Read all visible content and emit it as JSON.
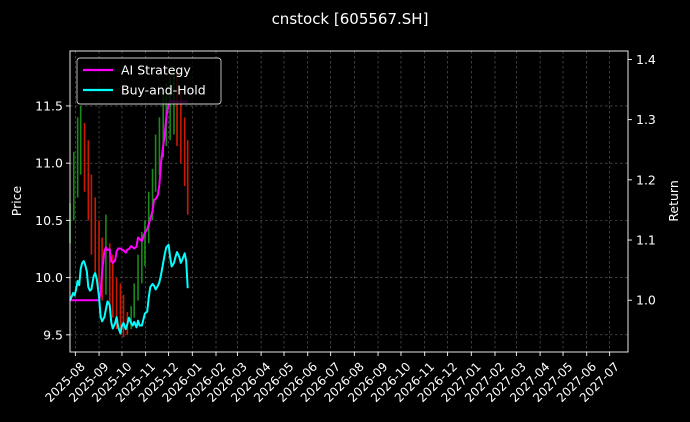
{
  "chart_data": {
    "type": "line",
    "title": "cnstock [605567.SH]",
    "xlabel": "",
    "ylabel": "Price",
    "y2label": "Return",
    "xlim": [
      "2025-07-25",
      "2027-07-25"
    ],
    "ylim": [
      9.35,
      11.98
    ],
    "y2lim": [
      0.914,
      1.414
    ],
    "grid": true,
    "legend_position": "upper-left",
    "x_ticks": [
      "2025-08-01",
      "2025-09-01",
      "2025-10-01",
      "2025-11-01",
      "2025-12-01",
      "2026-01-01",
      "2026-02-01",
      "2026-03-01",
      "2026-04-01",
      "2026-05-01",
      "2026-06-01",
      "2026-07-01",
      "2026-08-01",
      "2026-09-01",
      "2026-10-01",
      "2026-11-01",
      "2026-12-01",
      "2027-01-01",
      "2027-02-01",
      "2027-03-01",
      "2027-04-01",
      "2027-05-01",
      "2027-06-01",
      "2027-07-01"
    ],
    "x_tick_labels": [
      "2025-08",
      "2025-09",
      "2025-10",
      "2025-11",
      "2025-12",
      "2026-01",
      "2026-02",
      "2026-03",
      "2026-04",
      "2026-05",
      "2026-06",
      "2026-07",
      "2026-08",
      "2026-09",
      "2026-10",
      "2026-11",
      "2026-12",
      "2027-01",
      "2027-02",
      "2027-03",
      "2027-04",
      "2027-05",
      "2027-06",
      "2027-07"
    ],
    "y_ticks": [
      9.5,
      10.0,
      10.5,
      11.0,
      11.5
    ],
    "y_tick_labels": [
      "9.5",
      "10.0",
      "10.5",
      "11.0",
      "11.5"
    ],
    "y2_ticks": [
      1.0,
      1.1,
      1.2,
      1.3,
      1.4
    ],
    "y2_tick_labels": [
      "1.0",
      "1.1",
      "1.2",
      "1.3",
      "1.4"
    ],
    "candles_up_color": "#1a8a1a",
    "candles_down_color": "#cc1a00",
    "price_range": {
      "x": [
        "2025-07-25",
        "2025-07-30",
        "2025-08-04",
        "2025-08-08",
        "2025-08-13",
        "2025-08-18",
        "2025-08-22",
        "2025-08-27",
        "2025-09-01",
        "2025-09-05",
        "2025-09-10",
        "2025-09-15",
        "2025-09-19",
        "2025-09-24",
        "2025-09-29",
        "2025-10-03",
        "2025-10-08",
        "2025-10-13",
        "2025-10-17",
        "2025-10-22",
        "2025-10-27",
        "2025-10-31",
        "2025-11-05",
        "2025-11-10",
        "2025-11-14",
        "2025-11-19",
        "2025-11-24",
        "2025-11-28",
        "2025-12-03",
        "2025-12-08",
        "2025-12-12",
        "2025-12-17",
        "2025-12-22",
        "2025-12-26"
      ],
      "high": [
        10.65,
        11.1,
        11.4,
        11.5,
        11.35,
        11.2,
        10.9,
        10.7,
        10.5,
        10.35,
        10.55,
        10.3,
        10.2,
        10.0,
        9.95,
        9.85,
        9.7,
        9.75,
        9.95,
        10.2,
        10.4,
        10.5,
        10.75,
        10.95,
        11.25,
        11.4,
        11.6,
        11.7,
        11.75,
        11.85,
        11.8,
        11.65,
        11.4,
        11.2
      ],
      "low": [
        10.3,
        10.5,
        10.7,
        10.9,
        10.75,
        10.5,
        10.2,
        10.05,
        9.9,
        9.8,
        9.85,
        9.75,
        9.65,
        9.55,
        9.5,
        9.48,
        9.5,
        9.55,
        9.65,
        9.8,
        9.95,
        10.1,
        10.3,
        10.5,
        10.75,
        10.9,
        11.05,
        11.15,
        11.2,
        11.25,
        11.15,
        11.0,
        10.8,
        10.55
      ]
    },
    "series": [
      {
        "name": "AI Strategy",
        "color": "#ff00ff",
        "x": [
          "2025-07-25",
          "2025-07-30",
          "2025-08-04",
          "2025-08-08",
          "2025-08-13",
          "2025-08-18",
          "2025-08-22",
          "2025-08-27",
          "2025-09-01",
          "2025-09-03",
          "2025-09-05",
          "2025-09-08",
          "2025-09-10",
          "2025-09-12",
          "2025-09-15",
          "2025-09-17",
          "2025-09-19",
          "2025-09-22",
          "2025-09-24",
          "2025-09-26",
          "2025-09-29",
          "2025-10-01",
          "2025-10-03",
          "2025-10-06",
          "2025-10-08",
          "2025-10-10",
          "2025-10-13",
          "2025-10-15",
          "2025-10-17",
          "2025-10-20",
          "2025-10-22",
          "2025-10-24",
          "2025-10-27",
          "2025-10-29",
          "2025-10-31",
          "2025-11-03",
          "2025-11-05",
          "2025-11-07",
          "2025-11-10",
          "2025-11-12",
          "2025-11-14",
          "2025-11-17",
          "2025-11-19",
          "2025-11-21",
          "2025-11-24",
          "2025-11-26",
          "2025-11-28",
          "2025-12-01",
          "2025-12-03",
          "2025-12-05",
          "2025-12-08",
          "2025-12-10",
          "2025-12-12",
          "2025-12-15",
          "2025-12-17",
          "2025-12-19",
          "2025-12-22",
          "2025-12-24",
          "2025-12-26"
        ],
        "values": [
          1.0,
          1.0,
          1.0,
          1.0,
          1.0,
          1.0,
          1.0,
          1.0,
          1.0,
          1.012,
          1.048,
          1.082,
          1.088,
          1.083,
          1.085,
          1.065,
          1.062,
          1.066,
          1.081,
          1.086,
          1.086,
          1.084,
          1.083,
          1.079,
          1.084,
          1.085,
          1.09,
          1.088,
          1.086,
          1.089,
          1.104,
          1.102,
          1.098,
          1.106,
          1.112,
          1.118,
          1.126,
          1.135,
          1.149,
          1.167,
          1.168,
          1.175,
          1.192,
          1.228,
          1.258,
          1.275,
          1.305,
          1.325,
          1.33,
          1.331,
          1.33,
          1.33,
          1.33,
          1.33,
          1.33,
          1.33,
          1.33,
          1.33,
          1.33
        ]
      },
      {
        "name": "Buy-and-Hold",
        "color": "#00ffff",
        "x": [
          "2025-07-25",
          "2025-07-27",
          "2025-07-29",
          "2025-07-31",
          "2025-08-02",
          "2025-08-04",
          "2025-08-06",
          "2025-08-08",
          "2025-08-10",
          "2025-08-12",
          "2025-08-14",
          "2025-08-16",
          "2025-08-18",
          "2025-08-20",
          "2025-08-22",
          "2025-08-25",
          "2025-08-27",
          "2025-08-29",
          "2025-09-01",
          "2025-09-03",
          "2025-09-05",
          "2025-09-08",
          "2025-09-10",
          "2025-09-12",
          "2025-09-15",
          "2025-09-17",
          "2025-09-19",
          "2025-09-22",
          "2025-09-24",
          "2025-09-26",
          "2025-09-29",
          "2025-10-01",
          "2025-10-03",
          "2025-10-06",
          "2025-10-08",
          "2025-10-10",
          "2025-10-13",
          "2025-10-15",
          "2025-10-17",
          "2025-10-20",
          "2025-10-22",
          "2025-10-24",
          "2025-10-27",
          "2025-10-29",
          "2025-10-31",
          "2025-11-03",
          "2025-11-05",
          "2025-11-07",
          "2025-11-10",
          "2025-11-12",
          "2025-11-14",
          "2025-11-17",
          "2025-11-19",
          "2025-11-21",
          "2025-11-24",
          "2025-11-26",
          "2025-11-28",
          "2025-12-01",
          "2025-12-03",
          "2025-12-05",
          "2025-12-08",
          "2025-12-10",
          "2025-12-12",
          "2025-12-15",
          "2025-12-17",
          "2025-12-19",
          "2025-12-22",
          "2025-12-24",
          "2025-12-26"
        ],
        "values": [
          1.0,
          1.005,
          1.012,
          1.008,
          1.018,
          1.032,
          1.025,
          1.052,
          1.062,
          1.065,
          1.058,
          1.048,
          1.022,
          1.016,
          1.018,
          1.04,
          1.045,
          1.035,
          1.006,
          0.973,
          0.965,
          0.972,
          0.985,
          0.998,
          0.992,
          0.963,
          0.953,
          0.962,
          0.972,
          0.955,
          0.945,
          0.958,
          0.962,
          0.952,
          0.96,
          0.971,
          0.962,
          0.958,
          0.964,
          0.955,
          0.966,
          0.958,
          0.958,
          0.968,
          0.978,
          0.981,
          1.004,
          1.022,
          1.027,
          1.024,
          1.018,
          1.024,
          1.03,
          1.042,
          1.063,
          1.077,
          1.088,
          1.092,
          1.072,
          1.056,
          1.062,
          1.072,
          1.08,
          1.072,
          1.062,
          1.068,
          1.078,
          1.065,
          1.02
        ]
      }
    ]
  }
}
